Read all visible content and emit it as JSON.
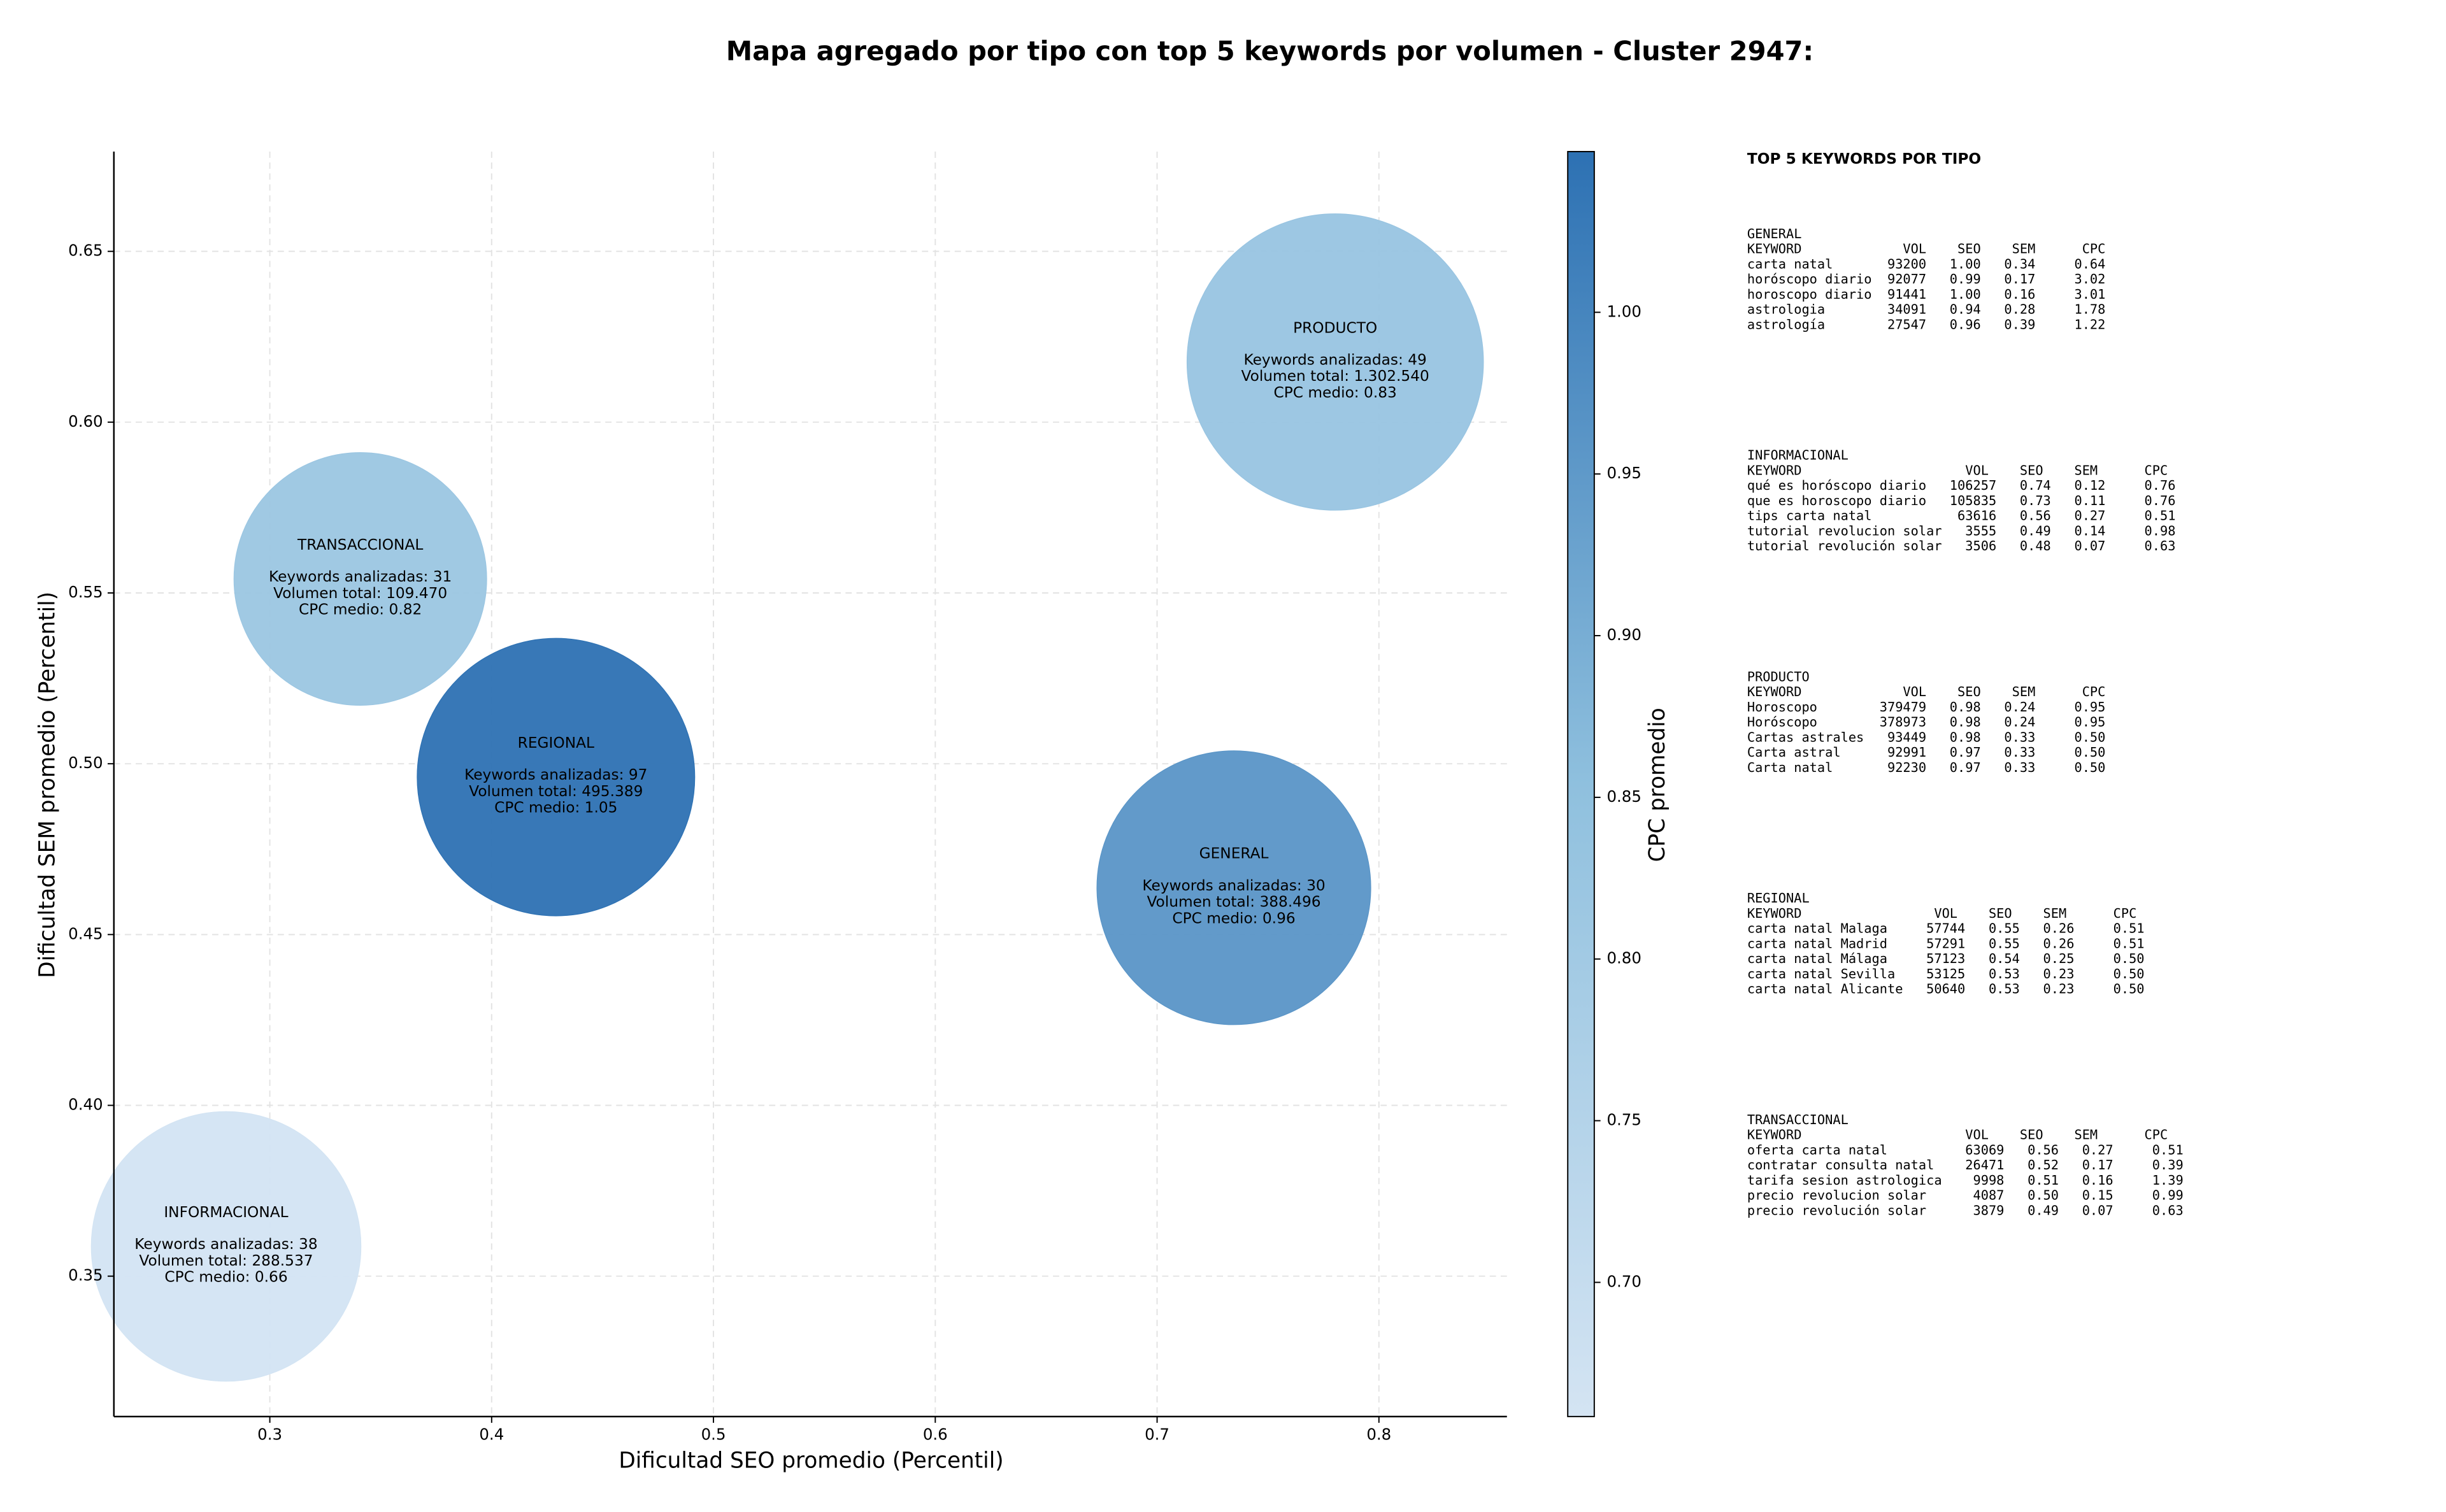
{
  "chart_data": {
    "type": "bubble",
    "title": "Mapa agregado por tipo con top 5 keywords por volumen - Cluster 2947:",
    "x_label": "Dificultad SEO promedio (Percentil)",
    "y_label": "Dificultad SEM promedio (Percentil)",
    "colorbar_label": "CPC promedio",
    "xlim": [
      0.2297,
      0.8577
    ],
    "xticks": [
      0.3,
      0.4,
      0.5,
      0.6,
      0.7,
      0.8
    ],
    "ylim": [
      0.3089,
      0.6792
    ],
    "yticks": [
      0.35,
      {
        "value": 0.4,
        "label": "0.40"
      },
      0.45,
      {
        "value": 0.5,
        "label": "0.50"
      },
      0.55,
      {
        "value": 0.6,
        "label": "0.60"
      },
      0.65
    ],
    "clim": [
      0.6585,
      1.0497
    ],
    "cticks": [
      {
        "value": 0.7,
        "label": "0.70"
      },
      0.75,
      {
        "value": 0.8,
        "label": "0.80"
      },
      0.85,
      {
        "value": 0.9,
        "label": "0.90"
      },
      0.95,
      {
        "value": 1.0,
        "label": "1.00"
      }
    ],
    "grid": true,
    "points": [
      {
        "name": "INFORMACIONAL",
        "x": 0.2803,
        "y": 0.3587,
        "volume": 288537,
        "cpc": 0.66,
        "lines": [
          "Keywords analizadas: 38",
          "Volumen total: 288.537",
          "CPC medio: 0.66"
        ]
      },
      {
        "name": "TRANSACCIONAL",
        "x": 0.3408,
        "y": 0.5541,
        "volume": 109470,
        "cpc": 0.82,
        "lines": [
          "Keywords analizadas: 31",
          "Volumen total: 109.470",
          "CPC medio: 0.82"
        ]
      },
      {
        "name": "REGIONAL",
        "x": 0.429,
        "y": 0.4961,
        "volume": 495389,
        "cpc": 1.05,
        "lines": [
          "Keywords analizadas: 97",
          "Volumen total: 495.389",
          "CPC medio: 1.05"
        ]
      },
      {
        "name": "GENERAL",
        "x": 0.7346,
        "y": 0.4637,
        "volume": 388496,
        "cpc": 0.96,
        "lines": [
          "Keywords analizadas: 30",
          "Volumen total: 388.496",
          "CPC medio: 0.96"
        ]
      },
      {
        "name": "PRODUCTO",
        "x": 0.7803,
        "y": 0.6176,
        "volume": 1302540,
        "cpc": 0.83,
        "lines": [
          "Keywords analizadas: 49",
          "Volumen total: 1.302.540",
          "CPC medio: 0.83"
        ]
      }
    ]
  },
  "keyword_table": {
    "title": "TOP 5 KEYWORDS POR TIPO",
    "sections": [
      {
        "name": "GENERAL",
        "lines": [
          "KEYWORD             VOL    SEO    SEM      CPC",
          "carta natal       93200   1.00   0.34     0.64",
          "horóscopo diario  92077   0.99   0.17     3.02",
          "horoscopo diario  91441   1.00   0.16     3.01",
          "astrologia        34091   0.94   0.28     1.78",
          "astrología        27547   0.96   0.39     1.22"
        ]
      },
      {
        "name": "INFORMACIONAL",
        "lines": [
          "KEYWORD                     VOL    SEO    SEM      CPC",
          "qué es horóscopo diario   106257   0.74   0.12     0.76",
          "que es horoscopo diario   105835   0.73   0.11     0.76",
          "tips carta natal           63616   0.56   0.27     0.51",
          "tutorial revolucion solar   3555   0.49   0.14     0.98",
          "tutorial revolución solar   3506   0.48   0.07     0.63"
        ]
      },
      {
        "name": "PRODUCTO",
        "lines": [
          "KEYWORD             VOL    SEO    SEM      CPC",
          "Horoscopo        379479   0.98   0.24     0.95",
          "Horóscopo        378973   0.98   0.24     0.95",
          "Cartas astrales   93449   0.98   0.33     0.50",
          "Carta astral      92991   0.97   0.33     0.50",
          "Carta natal       92230   0.97   0.33     0.50"
        ]
      },
      {
        "name": "REGIONAL",
        "lines": [
          "KEYWORD                 VOL    SEO    SEM      CPC",
          "carta natal Malaga     57744   0.55   0.26     0.51",
          "carta natal Madrid     57291   0.55   0.26     0.51",
          "carta natal Málaga     57123   0.54   0.25     0.50",
          "carta natal Sevilla    53125   0.53   0.23     0.50",
          "carta natal Alicante   50640   0.53   0.23     0.50"
        ]
      },
      {
        "name": "TRANSACCIONAL",
        "lines": [
          "KEYWORD                     VOL    SEO    SEM      CPC",
          "oferta carta natal          63069   0.56   0.27     0.51",
          "contratar consulta natal    26471   0.52   0.17     0.39",
          "tarifa sesion astrologica    9998   0.51   0.16     1.39",
          "precio revolucion solar      4087   0.50   0.15     0.99",
          "precio revolución solar      3879   0.49   0.07     0.63"
        ]
      }
    ]
  }
}
